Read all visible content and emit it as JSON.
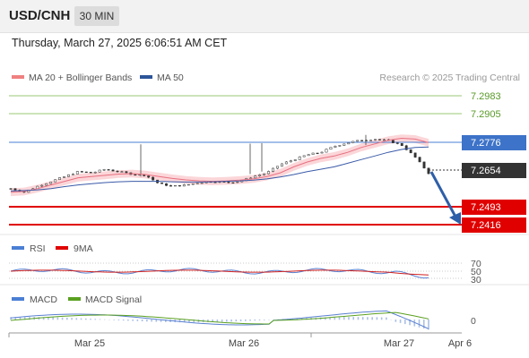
{
  "header": {
    "pair": "USD/CNH",
    "timeframe": "30 MIN",
    "datetime": "Thursday, March 27, 2025 6:06:51 AM CET"
  },
  "legend": {
    "bollinger": "MA 20 + Bollinger Bands",
    "ma50": "MA 50",
    "credit": "Research © 2025 Trading Central",
    "rsi": "RSI",
    "rsi_ma": "9MA",
    "macd": "MACD",
    "macd_signal": "MACD Signal"
  },
  "colors": {
    "resistance": "#7ab648",
    "support": "#e00000",
    "pivot": "#4a7fd4",
    "current": "#333333",
    "arrow": "#2e5fa8",
    "ma20": "#e06070",
    "ma50": "#3050a0",
    "band": "#fbd3d6",
    "candle_up": "#555555",
    "candle_down": "#333333"
  },
  "chart_data": {
    "type": "line",
    "title": "USD/CNH",
    "timeframe": "30 MIN",
    "x_ticks": [
      "Mar 25",
      "Mar 26",
      "Mar 27",
      "Apr 6"
    ],
    "ylim": [
      7.24,
      7.3
    ],
    "levels": [
      {
        "name": "resistance-2",
        "value": "7.2983",
        "kind": "resistance"
      },
      {
        "name": "resistance-1",
        "value": "7.2905",
        "kind": "resistance"
      },
      {
        "name": "pivot",
        "value": "7.2776",
        "kind": "pivot"
      },
      {
        "name": "last-price",
        "value": "7.2654",
        "kind": "current"
      },
      {
        "name": "support-1",
        "value": "7.2493",
        "kind": "support"
      },
      {
        "name": "support-2",
        "value": "7.2416",
        "kind": "support"
      }
    ],
    "series": [
      {
        "name": "MA 20",
        "values": [
          7.2575,
          7.2578,
          7.259,
          7.2605,
          7.262,
          7.2635,
          7.264,
          7.2645,
          7.265,
          7.2652,
          7.2648,
          7.264,
          7.2632,
          7.2626,
          7.2622,
          7.262,
          7.2622,
          7.2625,
          7.263,
          7.264,
          7.2655,
          7.268,
          7.27,
          7.2715,
          7.2725,
          7.274,
          7.276,
          7.2775,
          7.279,
          7.2798,
          7.2795,
          7.278
        ]
      },
      {
        "name": "MA 50",
        "values": [
          7.258,
          7.2582,
          7.2585,
          7.259,
          7.2598,
          7.2605,
          7.261,
          7.2615,
          7.2618,
          7.262,
          7.262,
          7.262,
          7.2618,
          7.2617,
          7.2617,
          7.2618,
          7.262,
          7.2622,
          7.2625,
          7.263,
          7.2638,
          7.2648,
          7.266,
          7.267,
          7.268,
          7.2695,
          7.271,
          7.2725,
          7.274,
          7.2752,
          7.276,
          7.2762
        ]
      },
      {
        "name": "Price",
        "values": [
          7.259,
          7.2575,
          7.26,
          7.262,
          7.264,
          7.266,
          7.2655,
          7.267,
          7.266,
          7.265,
          7.2645,
          7.261,
          7.26,
          7.2605,
          7.2615,
          7.262,
          7.2615,
          7.262,
          7.264,
          7.2655,
          7.269,
          7.271,
          7.273,
          7.274,
          7.2765,
          7.278,
          7.279,
          7.2795,
          7.2788,
          7.277,
          7.272,
          7.2654
        ]
      }
    ],
    "forecast": {
      "from": "7.2654",
      "to": "7.2416"
    },
    "rsi": {
      "axis_labels": [
        "70",
        "50",
        "30"
      ]
    },
    "macd": {
      "axis_labels": [
        "0"
      ]
    }
  }
}
